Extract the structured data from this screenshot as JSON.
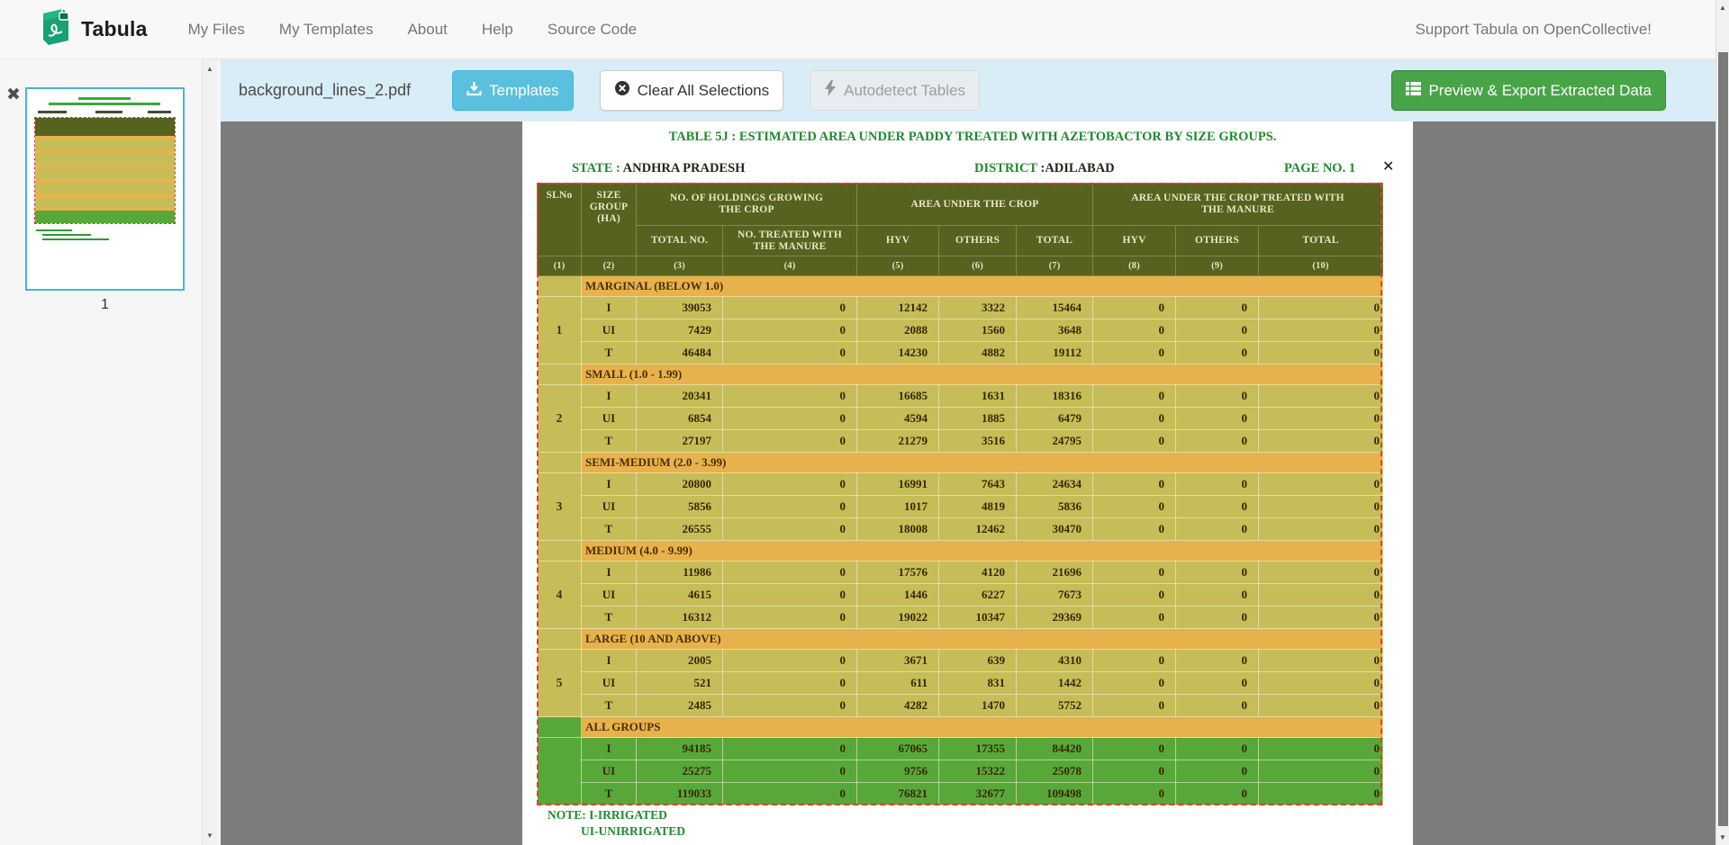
{
  "navbar": {
    "brand": "Tabula",
    "items": [
      {
        "name": "my-files",
        "label": "My Files"
      },
      {
        "name": "my-templates",
        "label": "My Templates"
      },
      {
        "name": "about",
        "label": "About"
      },
      {
        "name": "help",
        "label": "Help"
      },
      {
        "name": "source-code",
        "label": "Source Code"
      }
    ],
    "support_link": "Support Tabula on OpenCollective!"
  },
  "toolbar": {
    "filename": "background_lines_2.pdf",
    "templates_label": "Templates",
    "clear_label": "Clear All Selections",
    "autodetect_label": "Autodetect Tables",
    "export_label": "Preview & Export Extracted Data"
  },
  "sidebar": {
    "page_number": "1",
    "close_glyph": "✖"
  },
  "selection": {
    "close_glyph": "✕"
  },
  "pdf": {
    "title": "TABLE 5J : ESTIMATED AREA UNDER PADDY  TREATED WITH AZETOBACTOR BY SIZE GROUPS.",
    "state_label": "STATE :",
    "state_value": " ANDHRA PRADESH",
    "district_label": "DISTRICT",
    "district_value": " :ADILABAD",
    "page_label": "PAGE NO. 1",
    "notes": [
      "NOTE: I-IRRIGATED",
      "UI-UNIRRIGATED"
    ],
    "table": {
      "header": {
        "col1": "SLNo",
        "col2": "SIZE\nGROUP\n(HA)",
        "grp_holdings": "NO. OF HOLDINGS GROWING\nTHE CROP",
        "grp_area": "AREA UNDER THE CROP",
        "grp_treated": "AREA UNDER THE CROP TREATED WITH\nTHE  MANURE",
        "sub": [
          "TOTAL NO.",
          "NO. TREATED WITH\nTHE  MANURE",
          "HYV",
          "OTHERS",
          "TOTAL",
          "HYV",
          "OTHERS",
          "TOTAL"
        ],
        "numbers": [
          "(1)",
          "(2)",
          "(3)",
          "(4)",
          "(5)",
          "(6)",
          "(7)",
          "(8)",
          "(9)",
          "(10)"
        ]
      },
      "sections": [
        {
          "sl_no": "1",
          "label": "MARGINAL (BELOW 1.0)",
          "highlight": false,
          "rows": [
            {
              "type": "I",
              "values": [
                "39053",
                "0",
                "12142",
                "3322",
                "15464",
                "0",
                "0",
                "0"
              ]
            },
            {
              "type": "UI",
              "values": [
                "7429",
                "0",
                "2088",
                "1560",
                "3648",
                "0",
                "0",
                "0"
              ]
            },
            {
              "type": "T",
              "values": [
                "46484",
                "0",
                "14230",
                "4882",
                "19112",
                "0",
                "0",
                "0"
              ]
            }
          ]
        },
        {
          "sl_no": "2",
          "label": "SMALL (1.0 - 1.99)",
          "highlight": false,
          "rows": [
            {
              "type": "I",
              "values": [
                "20341",
                "0",
                "16685",
                "1631",
                "18316",
                "0",
                "0",
                "0"
              ]
            },
            {
              "type": "UI",
              "values": [
                "6854",
                "0",
                "4594",
                "1885",
                "6479",
                "0",
                "0",
                "0"
              ]
            },
            {
              "type": "T",
              "values": [
                "27197",
                "0",
                "21279",
                "3516",
                "24795",
                "0",
                "0",
                "0"
              ]
            }
          ]
        },
        {
          "sl_no": "3",
          "label": "SEMI-MEDIUM (2.0 - 3.99)",
          "highlight": false,
          "rows": [
            {
              "type": "I",
              "values": [
                "20800",
                "0",
                "16991",
                "7643",
                "24634",
                "0",
                "0",
                "0"
              ]
            },
            {
              "type": "UI",
              "values": [
                "5856",
                "0",
                "1017",
                "4819",
                "5836",
                "0",
                "0",
                "0"
              ]
            },
            {
              "type": "T",
              "values": [
                "26555",
                "0",
                "18008",
                "12462",
                "30470",
                "0",
                "0",
                "0"
              ]
            }
          ]
        },
        {
          "sl_no": "4",
          "label": "MEDIUM (4.0 - 9.99)",
          "highlight": false,
          "rows": [
            {
              "type": "I",
              "values": [
                "11986",
                "0",
                "17576",
                "4120",
                "21696",
                "0",
                "0",
                "0"
              ]
            },
            {
              "type": "UI",
              "values": [
                "4615",
                "0",
                "1446",
                "6227",
                "7673",
                "0",
                "0",
                "0"
              ]
            },
            {
              "type": "T",
              "values": [
                "16312",
                "0",
                "19022",
                "10347",
                "29369",
                "0",
                "0",
                "0"
              ]
            }
          ]
        },
        {
          "sl_no": "5",
          "label": "LARGE (10 AND ABOVE)",
          "highlight": false,
          "rows": [
            {
              "type": "I",
              "values": [
                "2005",
                "0",
                "3671",
                "639",
                "4310",
                "0",
                "0",
                "0"
              ]
            },
            {
              "type": "UI",
              "values": [
                "521",
                "0",
                "611",
                "831",
                "1442",
                "0",
                "0",
                "0"
              ]
            },
            {
              "type": "T",
              "values": [
                "2485",
                "0",
                "4282",
                "1470",
                "5752",
                "0",
                "0",
                "0"
              ]
            }
          ]
        },
        {
          "sl_no": "",
          "label": "ALL GROUPS",
          "highlight": true,
          "rows": [
            {
              "type": "I",
              "values": [
                "94185",
                "0",
                "67065",
                "17355",
                "84420",
                "0",
                "0",
                "0"
              ]
            },
            {
              "type": "UI",
              "values": [
                "25275",
                "0",
                "9756",
                "15322",
                "25078",
                "0",
                "0",
                "0"
              ]
            },
            {
              "type": "T",
              "values": [
                "119033",
                "0",
                "76821",
                "32677",
                "109498",
                "0",
                "0",
                "0"
              ]
            }
          ]
        }
      ]
    }
  },
  "colors": {
    "accent_blue": "#5bc0de",
    "accent_green": "#47a447",
    "toolbar_bg": "#d9edf7",
    "header_olive": "#556220",
    "row_khaki": "#c6bd58",
    "row_gold": "#e7b24c",
    "row_green": "#58a839",
    "selection_red": "#e8392e",
    "pdf_green_text": "#1e8b2c"
  }
}
